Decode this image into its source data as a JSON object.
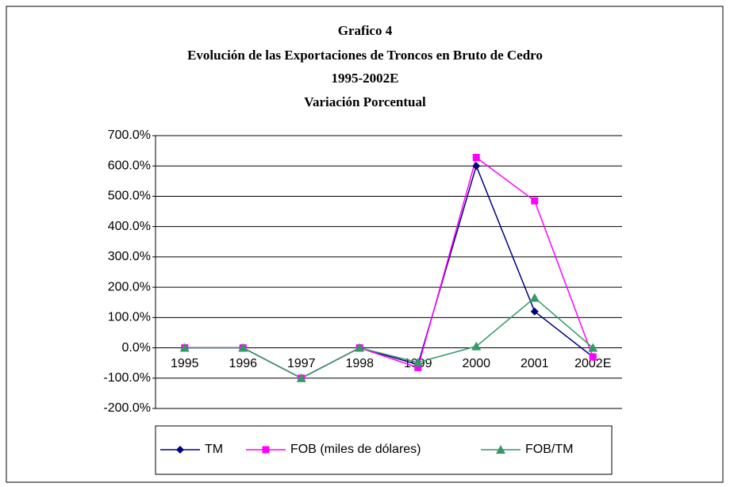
{
  "chart_data": {
    "type": "line",
    "title_lines": [
      "Grafico 4",
      "Evolución de las Exportaciones de Troncos en Bruto de Cedro",
      "1995-2002E",
      "Variación Porcentual"
    ],
    "categories": [
      "1995",
      "1996",
      "1997",
      "1998",
      "1999",
      "2000",
      "2001",
      "2002E"
    ],
    "series": [
      {
        "name": "TM",
        "color": "#000080",
        "marker": "diamond",
        "values": [
          0,
          0,
          -100,
          0,
          -55,
          600,
          120,
          -30
        ]
      },
      {
        "name": "FOB (miles de dólares)",
        "color": "#ff00ff",
        "marker": "square",
        "values": [
          0,
          0,
          -100,
          0,
          -65,
          628,
          485,
          -30
        ]
      },
      {
        "name": "FOB/TM",
        "color": "#339966",
        "marker": "triangle",
        "values": [
          0,
          0,
          -100,
          0,
          -48,
          5,
          165,
          0
        ]
      }
    ],
    "ylim": [
      -200,
      700
    ],
    "yticks": [
      {
        "value": -200,
        "label": "-200.0%"
      },
      {
        "value": -100,
        "label": "-100.0%"
      },
      {
        "value": 0,
        "label": "0.0%"
      },
      {
        "value": 100,
        "label": "100.0%"
      },
      {
        "value": 200,
        "label": "200.0%"
      },
      {
        "value": 300,
        "label": "300.0%"
      },
      {
        "value": 400,
        "label": "400.0%"
      },
      {
        "value": 500,
        "label": "500.0%"
      },
      {
        "value": 600,
        "label": "600.0%"
      },
      {
        "value": 700,
        "label": "700.0%"
      }
    ],
    "grid": true,
    "legend": "bottom"
  }
}
